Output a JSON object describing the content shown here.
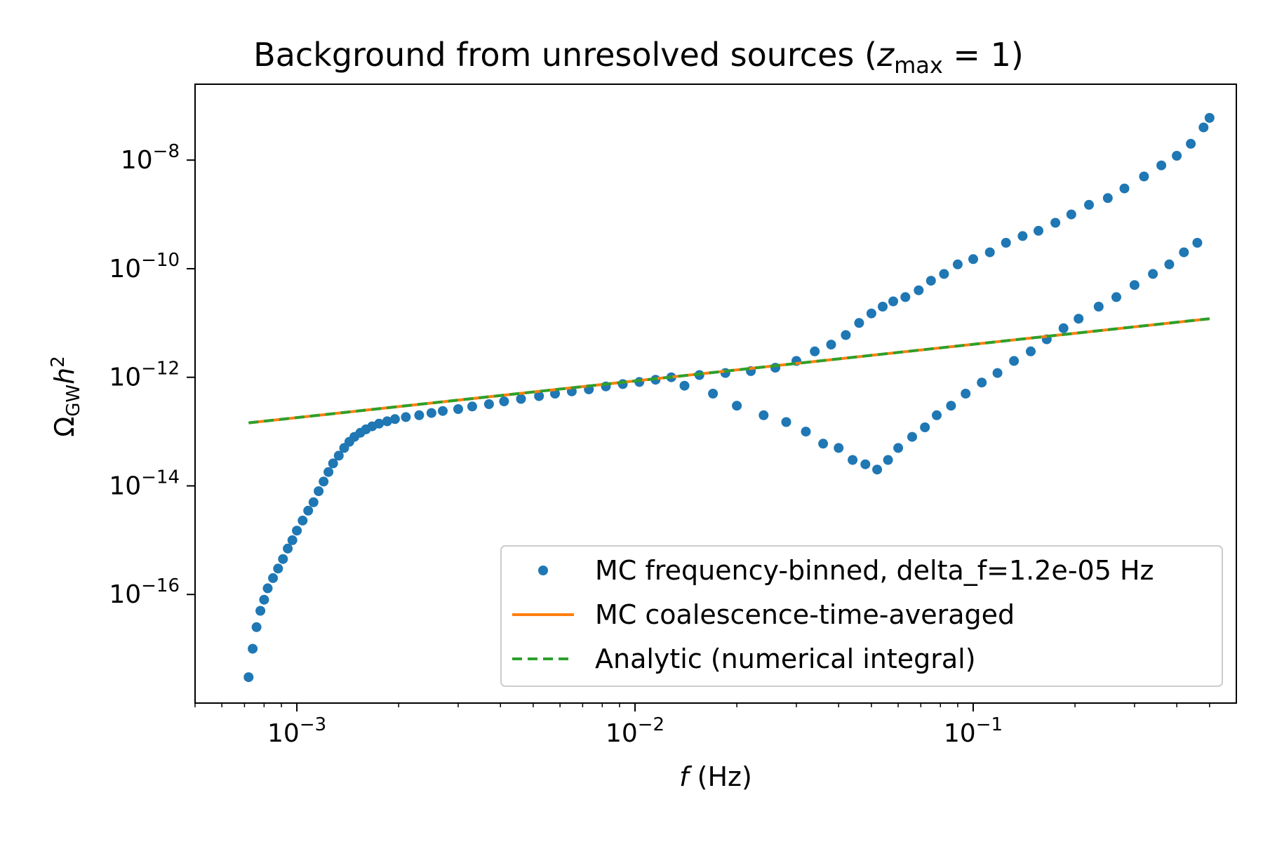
{
  "chart_data": {
    "type": "scatter",
    "title": {
      "prefix": "Background from unresolved sources (",
      "var": "z",
      "sub": "max",
      "equals": " = 1",
      "suffix": ")"
    },
    "xlabel": {
      "var": "f",
      "unit": " (Hz)"
    },
    "ylabel": {
      "base": "Ω",
      "sub": "GW",
      "var": "h",
      "sup": "2"
    },
    "x_scale": "log",
    "y_scale": "log",
    "xlim": [
      0.0005,
      0.6
    ],
    "ylim": [
      1e-18,
      2.5e-07
    ],
    "x_ticks": [
      {
        "value": 0.001,
        "base": "10",
        "exp": "−3"
      },
      {
        "value": 0.01,
        "base": "10",
        "exp": "−2"
      },
      {
        "value": 0.1,
        "base": "10",
        "exp": "−1"
      }
    ],
    "y_ticks": [
      {
        "value": 1e-16,
        "base": "10",
        "exp": "−16"
      },
      {
        "value": 1e-14,
        "base": "10",
        "exp": "−14"
      },
      {
        "value": 1e-12,
        "base": "10",
        "exp": "−12"
      },
      {
        "value": 1e-10,
        "base": "10",
        "exp": "−10"
      },
      {
        "value": 1e-08,
        "base": "10",
        "exp": "−8"
      }
    ],
    "grid": false,
    "legend_position": "lower-right",
    "series": [
      {
        "name": "MC frequency-binned, delta_f=1.2e-05 Hz",
        "kind": "scatter",
        "color": "#1f77b4",
        "x": [
          0.00072,
          0.00074,
          0.00076,
          0.00078,
          0.0008,
          0.00082,
          0.00085,
          0.00088,
          0.00091,
          0.00094,
          0.00097,
          0.001,
          0.00104,
          0.00108,
          0.00112,
          0.00116,
          0.0012,
          0.00124,
          0.00128,
          0.00133,
          0.00138,
          0.00143,
          0.00148,
          0.00154,
          0.0016,
          0.00167,
          0.00175,
          0.00185,
          0.00195,
          0.0021,
          0.0023,
          0.0025,
          0.0027,
          0.003,
          0.0033,
          0.0037,
          0.0041,
          0.0046,
          0.0052,
          0.0058,
          0.0065,
          0.0073,
          0.0082,
          0.0092,
          0.0103,
          0.0115,
          0.0128,
          0.014,
          0.0155,
          0.017,
          0.0185,
          0.02,
          0.022,
          0.024,
          0.026,
          0.028,
          0.03,
          0.032,
          0.034,
          0.036,
          0.038,
          0.04,
          0.042,
          0.044,
          0.046,
          0.048,
          0.05,
          0.052,
          0.054,
          0.056,
          0.058,
          0.06,
          0.063,
          0.066,
          0.069,
          0.072,
          0.075,
          0.078,
          0.082,
          0.086,
          0.09,
          0.095,
          0.1,
          0.106,
          0.112,
          0.118,
          0.125,
          0.132,
          0.14,
          0.148,
          0.156,
          0.165,
          0.175,
          0.185,
          0.195,
          0.205,
          0.22,
          0.235,
          0.25,
          0.265,
          0.28,
          0.3,
          0.32,
          0.34,
          0.36,
          0.38,
          0.4,
          0.42,
          0.44,
          0.46,
          0.48,
          0.5
        ],
        "y": [
          3e-18,
          1e-17,
          2.5e-17,
          5e-17,
          8e-17,
          1.3e-16,
          2e-16,
          3e-16,
          4.5e-16,
          7e-16,
          1e-15,
          1.5e-15,
          2.3e-15,
          3.5e-15,
          5e-15,
          8e-15,
          1.2e-14,
          1.8e-14,
          2.6e-14,
          3.6e-14,
          5e-14,
          6.5e-14,
          8e-14,
          9.5e-14,
          1.1e-13,
          1.25e-13,
          1.4e-13,
          1.55e-13,
          1.7e-13,
          1.85e-13,
          2e-13,
          2.2e-13,
          2.4e-13,
          2.6e-13,
          2.9e-13,
          3.2e-13,
          3.6e-13,
          4e-13,
          4.5e-13,
          5e-13,
          5.5e-13,
          6e-13,
          6.8e-13,
          7.5e-13,
          8.2e-13,
          9e-13,
          1e-12,
          7e-13,
          1.1e-12,
          5e-13,
          1.2e-12,
          3e-13,
          1.3e-12,
          2e-13,
          1.5e-12,
          1.5e-13,
          2e-12,
          1e-13,
          3e-12,
          6e-14,
          4e-12,
          5e-14,
          6e-12,
          3e-14,
          1e-11,
          2.5e-14,
          1.5e-11,
          2e-14,
          2e-11,
          3e-14,
          2.5e-11,
          5e-14,
          3e-11,
          8e-14,
          4e-11,
          1.2e-13,
          6e-11,
          2e-13,
          8e-11,
          3e-13,
          1.2e-10,
          5e-13,
          1.5e-10,
          8e-13,
          2e-10,
          1.2e-12,
          3e-10,
          2e-12,
          4e-10,
          3e-12,
          5e-10,
          5e-12,
          7e-10,
          8e-12,
          1e-09,
          1.2e-11,
          1.5e-09,
          2e-11,
          2e-09,
          3e-11,
          3e-09,
          5e-11,
          5e-09,
          8e-11,
          8e-09,
          1.2e-10,
          1.2e-08,
          2e-10,
          2e-08,
          3e-10,
          4e-08,
          6e-08
        ]
      },
      {
        "name": "MC coalescence-time-averaged",
        "kind": "line",
        "color": "#ff7f0e",
        "x": [
          0.00072,
          0.5
        ],
        "y": [
          1.45e-13,
          1.2e-11
        ]
      },
      {
        "name": "Analytic (numerical integral)",
        "kind": "dashed",
        "color": "#2ca02c",
        "x": [
          0.00072,
          0.5
        ],
        "y": [
          1.45e-13,
          1.2e-11
        ]
      }
    ]
  }
}
